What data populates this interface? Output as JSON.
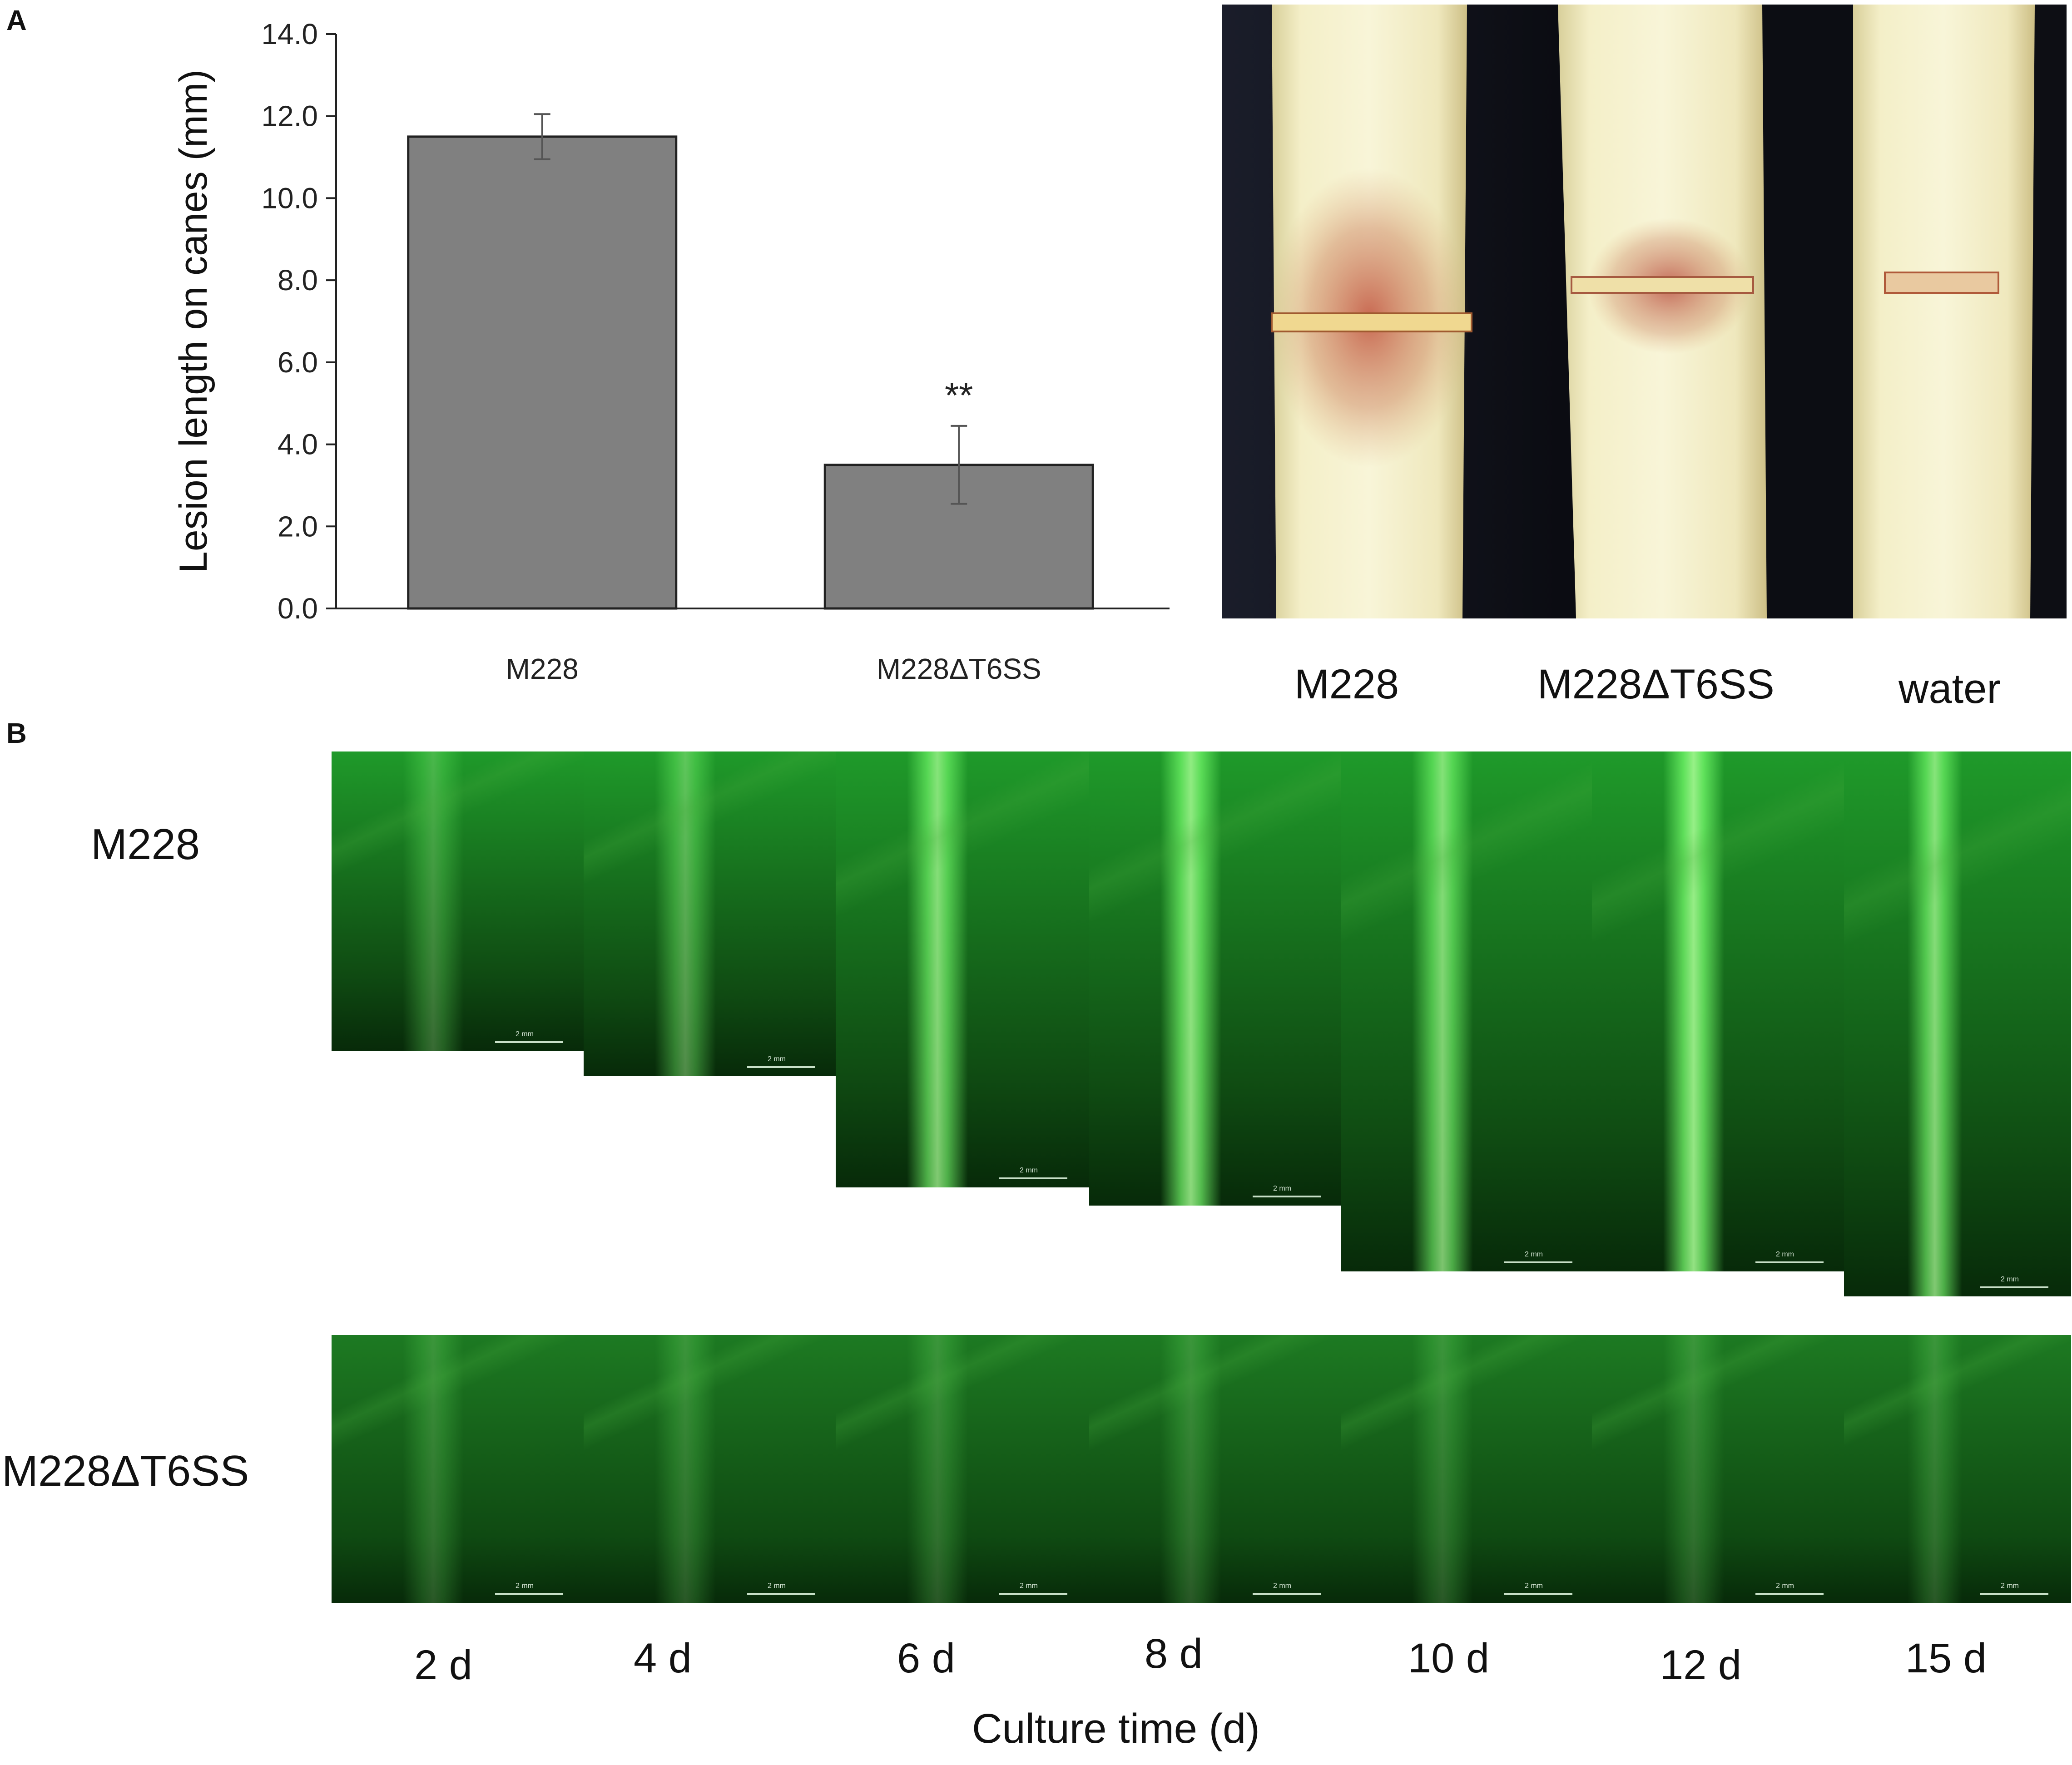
{
  "panel_labels": {
    "a": "A",
    "b": "B"
  },
  "chart_data": {
    "type": "bar",
    "title": "",
    "ylabel": "Lesion length on canes (mm)",
    "xlabel": "",
    "categories": [
      "M228",
      "M228ΔT6SS"
    ],
    "values": [
      11.5,
      3.5
    ],
    "errors": [
      0.55,
      0.95
    ],
    "annotations": [
      "",
      "**"
    ],
    "ylim": [
      0,
      14
    ],
    "yticks": [
      "0.0",
      "2.0",
      "4.0",
      "6.0",
      "8.0",
      "10.0",
      "12.0",
      "14.0"
    ],
    "grid": false,
    "bar_color": "#808080"
  },
  "cane_photo": {
    "labels": [
      "M228",
      "M228ΔT6SS",
      "water"
    ]
  },
  "fluorescence": {
    "rows": [
      "M228",
      "M228ΔT6SS"
    ],
    "days": [
      "2 d",
      "4 d",
      "6 d",
      "8 d",
      "10 d",
      "12 d",
      "15 d"
    ],
    "scale_label": "2 mm",
    "xlabel": "Culture time (d)",
    "color_top": "#1f9a2a",
    "color_bottom": "#1d7a22"
  }
}
